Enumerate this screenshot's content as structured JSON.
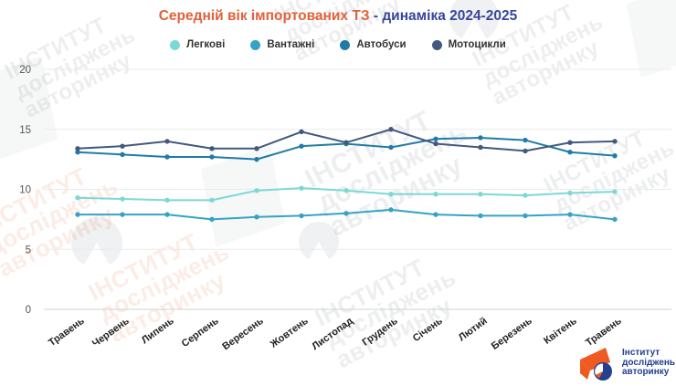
{
  "title": {
    "part1": "Середній вік імпортованих ТЗ",
    "part2": " - динаміка 2024-2025"
  },
  "legend": [
    {
      "label": "Легкові",
      "color": "#7cd8d6"
    },
    {
      "label": "Вантажні",
      "color": "#36a3c5"
    },
    {
      "label": "Автобуси",
      "color": "#207ba8"
    },
    {
      "label": "Мотоцикли",
      "color": "#42597e"
    }
  ],
  "chart_data": {
    "type": "line",
    "title": "Середній вік імпортованих ТЗ - динаміка 2024-2025",
    "categories": [
      "Травень",
      "Червень",
      "Липень",
      "Серпень",
      "Вересень",
      "Жовтень",
      "Листопад",
      "Грудень",
      "Січень",
      "Лютий",
      "Березень",
      "Квітень",
      "Травень"
    ],
    "series": [
      {
        "name": "Легкові",
        "color": "#7cd8d6",
        "values": [
          9.3,
          9.2,
          9.1,
          9.1,
          9.9,
          10.1,
          9.9,
          9.6,
          9.6,
          9.6,
          9.5,
          9.7,
          9.8
        ]
      },
      {
        "name": "Вантажні",
        "color": "#36a3c5",
        "values": [
          7.9,
          7.9,
          7.9,
          7.5,
          7.7,
          7.8,
          8.0,
          8.3,
          7.9,
          7.8,
          7.8,
          7.9,
          7.5
        ]
      },
      {
        "name": "Автобуси",
        "color": "#207ba8",
        "values": [
          13.1,
          12.9,
          12.7,
          12.7,
          12.5,
          13.6,
          13.8,
          13.5,
          14.2,
          14.3,
          14.1,
          13.1,
          12.8
        ]
      },
      {
        "name": "Мотоцикли",
        "color": "#42597e",
        "values": [
          13.4,
          13.6,
          14.0,
          13.4,
          13.4,
          14.8,
          13.9,
          15.0,
          13.8,
          13.5,
          13.2,
          13.9,
          14.0
        ]
      }
    ],
    "yticks": [
      0,
      5,
      10,
      15,
      20
    ],
    "ylim": [
      0,
      20
    ],
    "grid": true,
    "legend_position": "top",
    "xlabel": "",
    "ylabel": ""
  },
  "watermark": {
    "line1": "ІНСТИТУТ",
    "line2": "досліджень",
    "line3": "авторинку"
  },
  "logo": {
    "line1": "Інститут",
    "line2": "досліджень",
    "line3": "авторинку"
  }
}
